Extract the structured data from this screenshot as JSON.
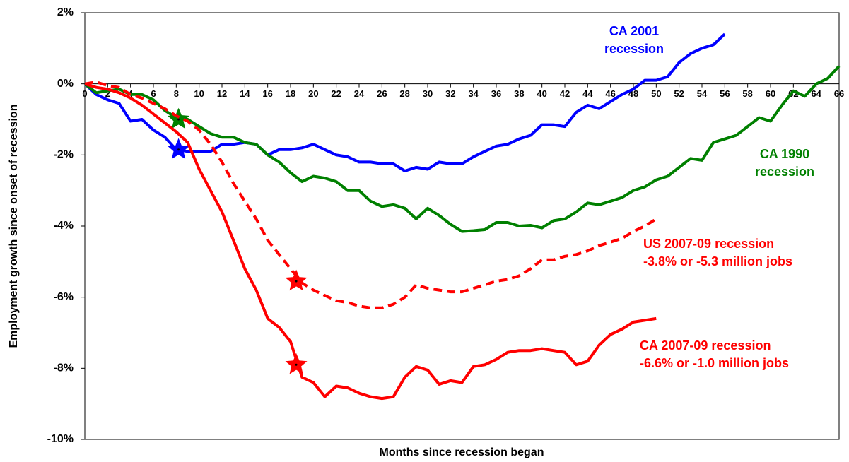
{
  "chart_data": {
    "type": "line",
    "x_label": "Months since recession began",
    "y_label": "Employment growth since onset of recession",
    "x": [
      0,
      1,
      2,
      3,
      4,
      5,
      6,
      7,
      8,
      9,
      10,
      11,
      12,
      13,
      14,
      15,
      16,
      17,
      18,
      19,
      20,
      21,
      22,
      23,
      24,
      25,
      26,
      27,
      28,
      29,
      30,
      31,
      32,
      33,
      34,
      35,
      36,
      37,
      38,
      39,
      40,
      41,
      42,
      43,
      44,
      45,
      46,
      47,
      48,
      49,
      50,
      51,
      52,
      53,
      54,
      55,
      56,
      57,
      58,
      59,
      60,
      61,
      62,
      63,
      64,
      65,
      66
    ],
    "xlim": [
      0,
      66
    ],
    "xticks": [
      0,
      2,
      4,
      6,
      8,
      10,
      12,
      14,
      16,
      18,
      20,
      22,
      24,
      26,
      28,
      30,
      32,
      34,
      36,
      38,
      40,
      42,
      44,
      46,
      48,
      50,
      52,
      54,
      56,
      58,
      60,
      62,
      64,
      66
    ],
    "ylim": [
      -10,
      2
    ],
    "yticks": [
      {
        "value": -10,
        "label": "-10%"
      },
      {
        "value": -8,
        "label": "-8%"
      },
      {
        "value": -6,
        "label": "-6%"
      },
      {
        "value": -4,
        "label": "-4%"
      },
      {
        "value": -2,
        "label": "-2%"
      },
      {
        "value": 0,
        "label": "0%"
      },
      {
        "value": 2,
        "label": "2%"
      }
    ],
    "series": [
      {
        "label": [
          "CA 2001",
          "recession"
        ],
        "color": "#0000ff",
        "dashed": false,
        "star": {
          "x": 8.2,
          "y": -1.85
        },
        "values": [
          0,
          -0.3,
          -0.45,
          -0.55,
          -1.05,
          -1.0,
          -1.3,
          -1.5,
          -1.85,
          -1.9,
          -1.9,
          -1.9,
          -1.7,
          -1.7,
          -1.65,
          -1.7,
          -2.0,
          -1.85,
          -1.85,
          -1.8,
          -1.7,
          -1.85,
          -2.0,
          -2.05,
          -2.2,
          -2.2,
          -2.25,
          -2.25,
          -2.45,
          -2.35,
          -2.4,
          -2.2,
          -2.25,
          -2.25,
          -2.05,
          -1.9,
          -1.75,
          -1.7,
          -1.55,
          -1.45,
          -1.15,
          -1.15,
          -1.2,
          -0.8,
          -0.6,
          -0.7,
          -0.5,
          -0.3,
          -0.15,
          0.1,
          0.1,
          0.2,
          0.6,
          0.85,
          1.0,
          1.1,
          1.4,
          null,
          null,
          null,
          null,
          null,
          null,
          null,
          null,
          null,
          null
        ]
      },
      {
        "label": [
          "CA 1990",
          "recession"
        ],
        "color": "#008000",
        "dashed": false,
        "star": {
          "x": 8.2,
          "y": -1.0
        },
        "values": [
          0,
          -0.25,
          -0.2,
          -0.15,
          -0.3,
          -0.3,
          -0.45,
          -0.75,
          -0.95,
          -1.0,
          -1.2,
          -1.4,
          -1.5,
          -1.5,
          -1.65,
          -1.7,
          -2.0,
          -2.2,
          -2.5,
          -2.75,
          -2.6,
          -2.65,
          -2.75,
          -3.0,
          -3.0,
          -3.3,
          -3.45,
          -3.4,
          -3.5,
          -3.8,
          -3.5,
          -3.7,
          -3.95,
          -4.15,
          -4.13,
          -4.1,
          -3.9,
          -3.9,
          -4.0,
          -3.98,
          -4.05,
          -3.85,
          -3.8,
          -3.6,
          -3.35,
          -3.4,
          -3.3,
          -3.2,
          -3.0,
          -2.9,
          -2.7,
          -2.6,
          -2.35,
          -2.1,
          -2.15,
          -1.65,
          -1.55,
          -1.45,
          -1.2,
          -0.95,
          -1.05,
          -0.6,
          -0.2,
          -0.35,
          0.0,
          0.15,
          0.5
        ]
      },
      {
        "label": [
          "US 2007-09 recession",
          "-3.8% or -5.3 million jobs"
        ],
        "color": "#ff0000",
        "dashed": true,
        "star": {
          "x": 18.5,
          "y": -5.55
        },
        "values": [
          0,
          0.05,
          -0.05,
          -0.1,
          -0.3,
          -0.4,
          -0.55,
          -0.7,
          -0.9,
          -1.05,
          -1.3,
          -1.7,
          -2.2,
          -2.8,
          -3.3,
          -3.8,
          -4.4,
          -4.8,
          -5.2,
          -5.6,
          -5.8,
          -5.95,
          -6.1,
          -6.15,
          -6.25,
          -6.3,
          -6.3,
          -6.2,
          -6.0,
          -5.65,
          -5.75,
          -5.8,
          -5.85,
          -5.85,
          -5.75,
          -5.65,
          -5.55,
          -5.5,
          -5.4,
          -5.2,
          -4.95,
          -4.95,
          -4.85,
          -4.8,
          -4.7,
          -4.55,
          -4.45,
          -4.35,
          -4.15,
          -4.0,
          -3.8,
          null,
          null,
          null,
          null,
          null,
          null,
          null,
          null,
          null,
          null,
          null,
          null,
          null,
          null,
          null,
          null
        ]
      },
      {
        "label": [
          "CA 2007-09 recession",
          "-6.6% or -1.0 million jobs"
        ],
        "color": "#ff0000",
        "dashed": false,
        "star": {
          "x": 18.5,
          "y": -7.9
        },
        "values": [
          0,
          -0.1,
          -0.15,
          -0.25,
          -0.4,
          -0.6,
          -0.85,
          -1.1,
          -1.35,
          -1.65,
          -2.4,
          -3.0,
          -3.6,
          -4.4,
          -5.2,
          -5.8,
          -6.6,
          -6.85,
          -7.25,
          -8.25,
          -8.4,
          -8.8,
          -8.5,
          -8.55,
          -8.7,
          -8.8,
          -8.85,
          -8.8,
          -8.25,
          -7.95,
          -8.05,
          -8.45,
          -8.35,
          -8.4,
          -7.95,
          -7.9,
          -7.75,
          -7.55,
          -7.5,
          -7.5,
          -7.45,
          -7.5,
          -7.55,
          -7.9,
          -7.8,
          -7.35,
          -7.05,
          -6.9,
          -6.7,
          -6.65,
          -6.6,
          null,
          null,
          null,
          null,
          null,
          null,
          null,
          null,
          null,
          null,
          null,
          null,
          null,
          null,
          null,
          null
        ]
      }
    ]
  }
}
